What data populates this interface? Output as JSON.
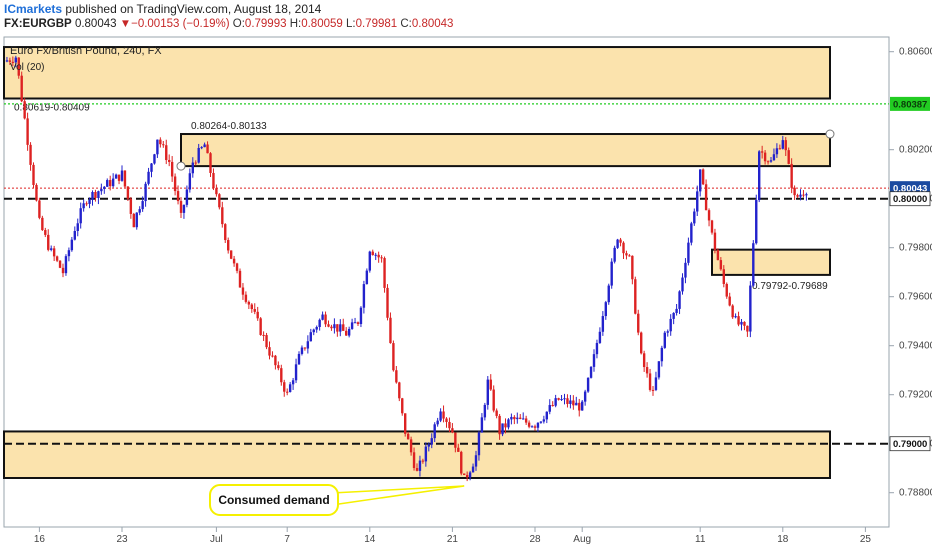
{
  "header": {
    "author": "ICmarkets",
    "published_text": "published on TradingView.com, August 18, 2014",
    "symbol": "FX:EURGBP",
    "last": "0.80043",
    "change_arrow": "▼",
    "change": "−0.00153 (−0.19%)",
    "o_label": "O:",
    "o": "0.79993",
    "h_label": "H:",
    "h": "0.80059",
    "l_label": "L:",
    "l": "0.79981",
    "c_label": "C:",
    "c": "0.80043"
  },
  "colors": {
    "up_candle": "#2222cc",
    "down_candle": "#dd2222",
    "zone_fill": "#fbe3ad",
    "zone_border": "#111111",
    "green_line": "#22cc22",
    "price_label_bg": "#1a4aa0",
    "callout_border": "#f5f000"
  },
  "chart_data": {
    "type": "candlestick",
    "title": "Euro Fx/British Pound, 240, FX",
    "indicator_label": "Vol (20)",
    "y_ticks": [
      "0.80600",
      "0.80200",
      "0.80000",
      "0.79800",
      "0.79600",
      "0.79400",
      "0.79200",
      "0.79000",
      "0.78800"
    ],
    "x_ticks": [
      "16",
      "23",
      "Jul",
      "7",
      "14",
      "21",
      "28",
      "Aug",
      "11",
      "18",
      "25"
    ],
    "x_range": [
      "2014-06-13",
      "2014-08-27"
    ],
    "y_range": [
      0.7866,
      0.8066
    ],
    "price_tags": [
      {
        "text": "0.80387",
        "style": "green"
      },
      {
        "text": "0.80043",
        "style": "blue"
      },
      {
        "text": "0.80000",
        "style": "plain"
      },
      {
        "text": "0.79000",
        "style": "plain"
      }
    ],
    "zones": [
      {
        "label": "0.80619-0.80409",
        "top": 0.80619,
        "bottom": 0.80409,
        "x_start": "2014-06-13",
        "x_end": "2014-08-22"
      },
      {
        "label": "0.80264-0.80133",
        "top": 0.80264,
        "bottom": 0.80133,
        "x_start": "2014-06-28",
        "x_end": "2014-08-22"
      },
      {
        "label": "0.79792-0.79689",
        "top": 0.79792,
        "bottom": 0.79689,
        "x_start": "2014-08-12",
        "x_end": "2014-08-22"
      },
      {
        "label": "",
        "top": 0.7905,
        "bottom": 0.7886,
        "x_start": "2014-06-13",
        "x_end": "2014-08-22"
      }
    ],
    "levels": [
      {
        "value": 0.80387,
        "style": "green-dotted"
      },
      {
        "value": 0.80043,
        "style": "red-dotted"
      },
      {
        "value": 0.8,
        "style": "black-dashed"
      },
      {
        "value": 0.79,
        "style": "black-dashed"
      }
    ],
    "annotation": {
      "text": "Consumed demand",
      "target_date": "2014-07-22",
      "target_price": 0.78852
    },
    "waypoints": [
      [
        "2014-06-13",
        0.8056
      ],
      [
        "2014-06-14",
        0.8058
      ],
      [
        "2014-06-16",
        0.799
      ],
      [
        "2014-06-17",
        0.7978
      ],
      [
        "2014-06-18",
        0.797
      ],
      [
        "2014-06-19",
        0.7988
      ],
      [
        "2014-06-20",
        0.8
      ],
      [
        "2014-06-23",
        0.801
      ],
      [
        "2014-06-24",
        0.799
      ],
      [
        "2014-06-25",
        0.8005
      ],
      [
        "2014-06-26",
        0.8025
      ],
      [
        "2014-06-27",
        0.8015
      ],
      [
        "2014-06-28",
        0.7992
      ],
      [
        "2014-06-29",
        0.8015
      ],
      [
        "2014-06-30",
        0.8022
      ],
      [
        "2014-07-01",
        0.8
      ],
      [
        "2014-07-02",
        0.798
      ],
      [
        "2014-07-03",
        0.7965
      ],
      [
        "2014-07-04",
        0.7955
      ],
      [
        "2014-07-07",
        0.792
      ],
      [
        "2014-07-08",
        0.7935
      ],
      [
        "2014-07-09",
        0.7945
      ],
      [
        "2014-07-10",
        0.7952
      ],
      [
        "2014-07-11",
        0.7948
      ],
      [
        "2014-07-12",
        0.7945
      ],
      [
        "2014-07-13",
        0.795
      ],
      [
        "2014-07-14",
        0.798
      ],
      [
        "2014-07-15",
        0.7975
      ],
      [
        "2014-07-16",
        0.793
      ],
      [
        "2014-07-17",
        0.7905
      ],
      [
        "2014-07-18",
        0.7888
      ],
      [
        "2014-07-19",
        0.79
      ],
      [
        "2014-07-20",
        0.7915
      ],
      [
        "2014-07-21",
        0.7905
      ],
      [
        "2014-07-22",
        0.7885
      ],
      [
        "2014-07-23",
        0.7895
      ],
      [
        "2014-07-24",
        0.7925
      ],
      [
        "2014-07-25",
        0.7905
      ],
      [
        "2014-07-26",
        0.791
      ],
      [
        "2014-07-28",
        0.7908
      ],
      [
        "2014-07-30",
        0.7918
      ],
      [
        "2014-08-01",
        0.7915
      ],
      [
        "2014-08-02",
        0.7935
      ],
      [
        "2014-08-03",
        0.796
      ],
      [
        "2014-08-04",
        0.7985
      ],
      [
        "2014-08-05",
        0.7975
      ],
      [
        "2014-08-06",
        0.7935
      ],
      [
        "2014-08-07",
        0.792
      ],
      [
        "2014-08-08",
        0.7945
      ],
      [
        "2014-08-09",
        0.7955
      ],
      [
        "2014-08-11",
        0.801
      ],
      [
        "2014-08-12",
        0.7985
      ],
      [
        "2014-08-13",
        0.7965
      ],
      [
        "2014-08-14",
        0.795
      ],
      [
        "2014-08-15",
        0.7945
      ],
      [
        "2014-08-16",
        0.802
      ],
      [
        "2014-08-17",
        0.8015
      ],
      [
        "2014-08-18",
        0.8025
      ],
      [
        "2014-08-19",
        0.8
      ],
      [
        "2014-08-20",
        0.8004
      ]
    ]
  }
}
